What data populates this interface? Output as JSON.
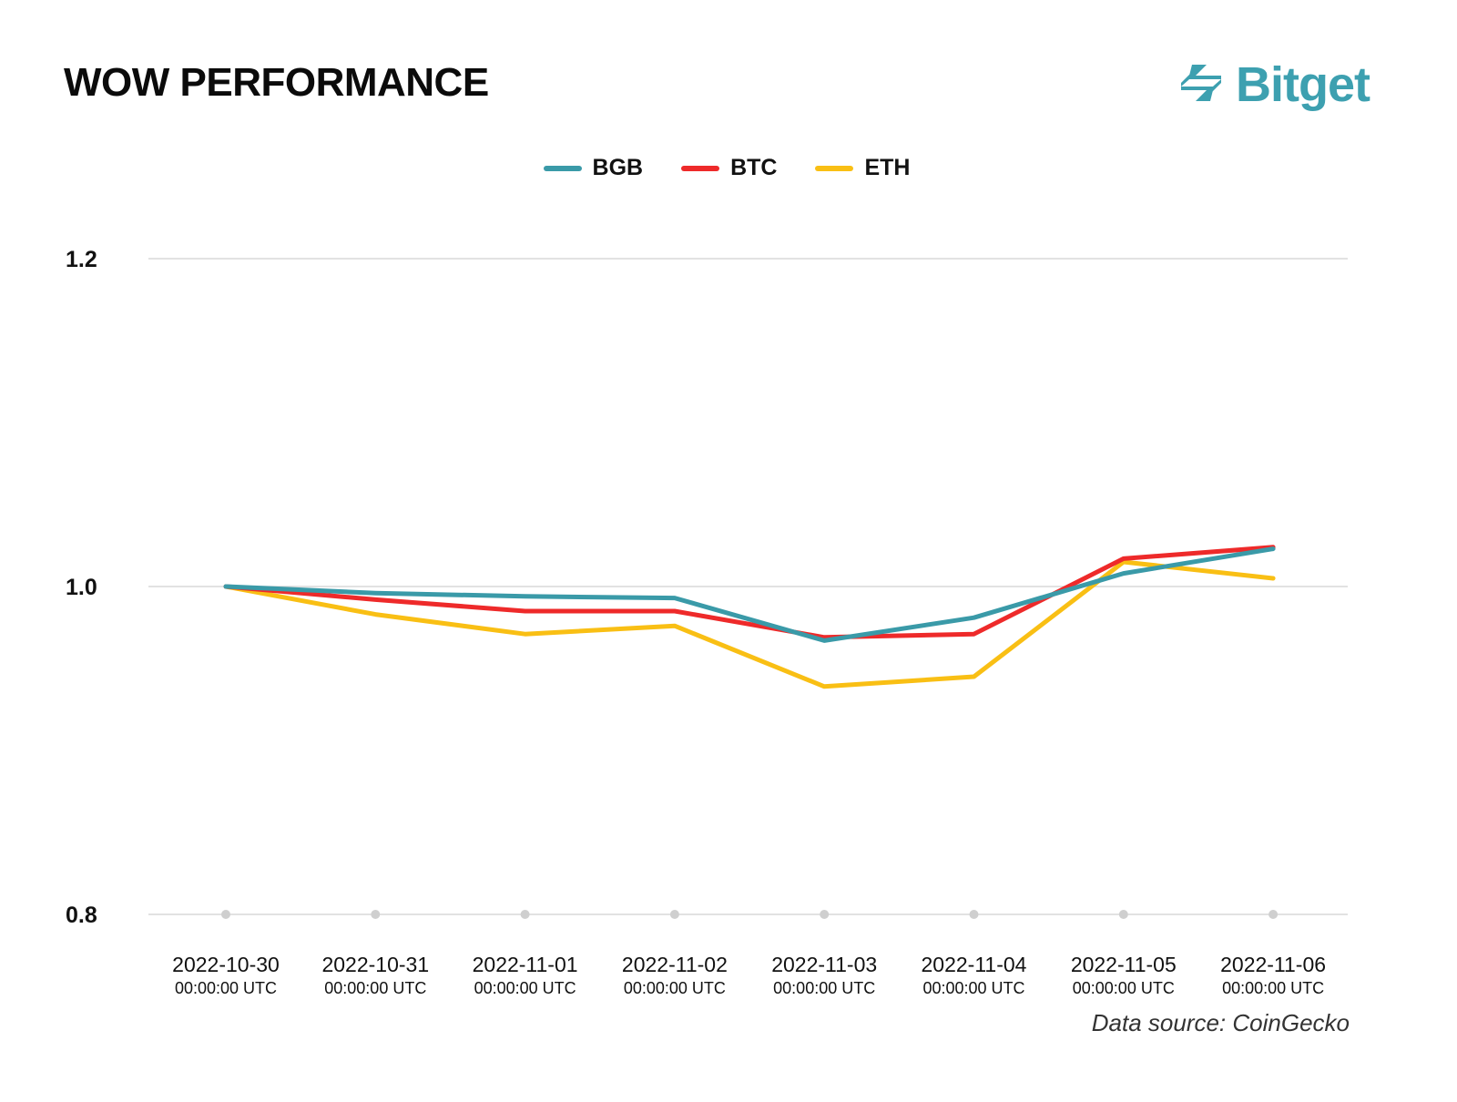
{
  "header": {
    "title": "WOW PERFORMANCE",
    "brand_name": "Bitget",
    "brand_icon": "bitget-logo-icon"
  },
  "colors": {
    "BGB": "#3a9aa8",
    "BTC": "#ee2a2a",
    "ETH": "#f9bf14",
    "grid": "#d9d9d9",
    "brand": "#3da0b0"
  },
  "chart_data": {
    "type": "line",
    "title": "WOW PERFORMANCE",
    "xlabel": "",
    "ylabel": "",
    "ylim": [
      0.8,
      1.2
    ],
    "yticks": [
      {
        "value": 0.8,
        "label": "0.8"
      },
      {
        "value": 1.0,
        "label": "1.0"
      },
      {
        "value": 1.2,
        "label": "1.2"
      }
    ],
    "grid": true,
    "legend_position": "top-center",
    "categories": [
      {
        "date": "2022-10-30",
        "time": "00:00:00 UTC"
      },
      {
        "date": "2022-10-31",
        "time": "00:00:00 UTC"
      },
      {
        "date": "2022-11-01",
        "time": "00:00:00 UTC"
      },
      {
        "date": "2022-11-02",
        "time": "00:00:00 UTC"
      },
      {
        "date": "2022-11-03",
        "time": "00:00:00 UTC"
      },
      {
        "date": "2022-11-04",
        "time": "00:00:00 UTC"
      },
      {
        "date": "2022-11-05",
        "time": "00:00:00 UTC"
      },
      {
        "date": "2022-11-06",
        "time": "00:00:00 UTC"
      }
    ],
    "series": [
      {
        "name": "BGB",
        "values": [
          1.0,
          0.996,
          0.994,
          0.993,
          0.967,
          0.981,
          1.008,
          1.023
        ]
      },
      {
        "name": "BTC",
        "values": [
          1.0,
          0.992,
          0.985,
          0.985,
          0.969,
          0.971,
          1.017,
          1.024
        ]
      },
      {
        "name": "ETH",
        "values": [
          1.0,
          0.983,
          0.971,
          0.976,
          0.939,
          0.945,
          1.015,
          1.005
        ]
      }
    ]
  },
  "footer": {
    "source": "Data source: CoinGecko"
  }
}
